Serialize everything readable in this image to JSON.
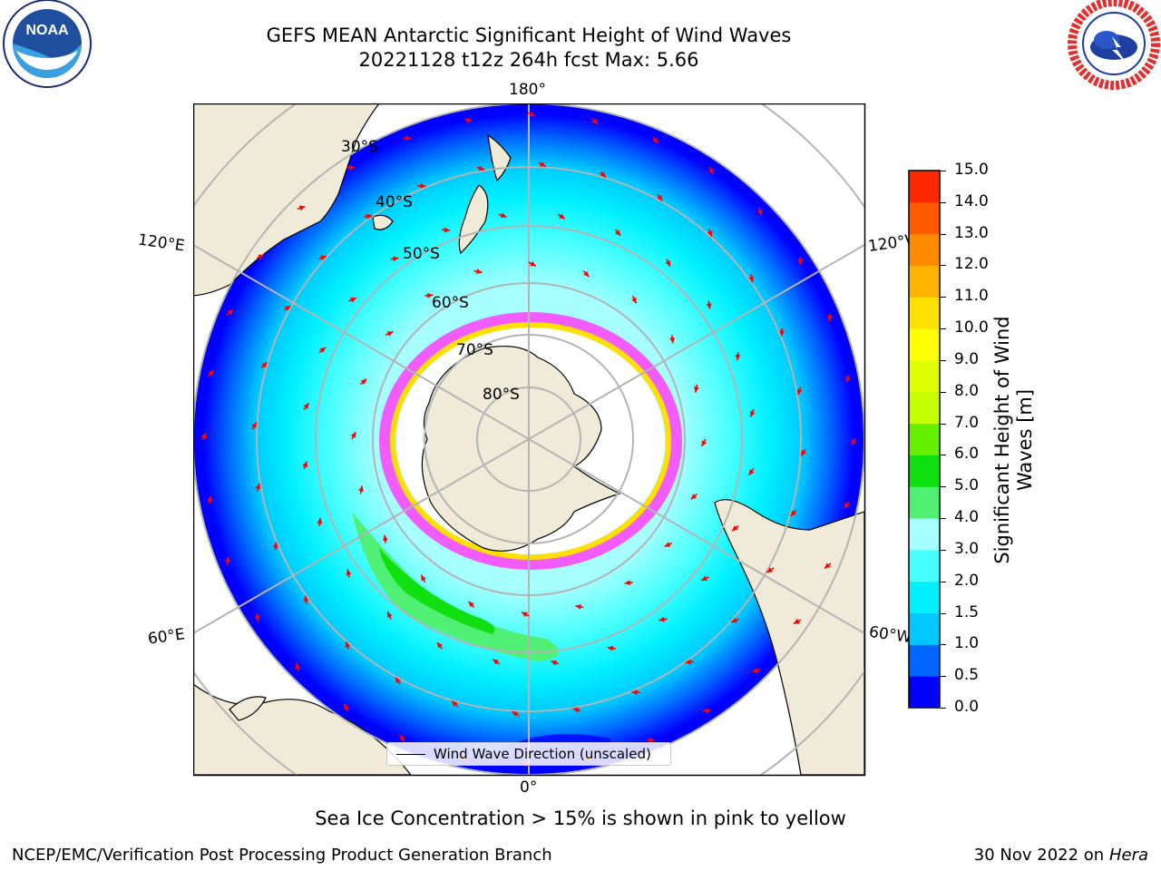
{
  "title": {
    "line1": "GEFS MEAN Antarctic Significant Height of Wind Waves",
    "line2": "20221128 t12z 264h fcst   Max: 5.66"
  },
  "map": {
    "projection": "south-polar-stereographic",
    "longitude_labels": [
      "180°",
      "120°E",
      "120°W",
      "60°E",
      "60°W",
      "0°"
    ],
    "latitude_labels": [
      "30°S",
      "40°S",
      "50°S",
      "60°S",
      "70°S",
      "80°S"
    ],
    "colors": {
      "land": "#efebd8",
      "ocean_low": "#0000ff",
      "ice": "#ffffff",
      "grid": "#b4b4b4",
      "arrow": "#ff0000"
    }
  },
  "legend": {
    "label": "Wind Wave Direction (unscaled)"
  },
  "colorbar": {
    "label_line1": "Significant Height of Wind",
    "label_line2": "Waves [m]",
    "ticks": [
      "0.0",
      "0.5",
      "1.0",
      "1.5",
      "2.0",
      "3.0",
      "4.0",
      "5.0",
      "6.0",
      "7.0",
      "8.0",
      "9.0",
      "10.0",
      "11.0",
      "12.0",
      "13.0",
      "14.0",
      "15.0"
    ],
    "colors": [
      "#0000ff",
      "#0064ff",
      "#00c8ff",
      "#00f0ff",
      "#48ffff",
      "#a8ffff",
      "#50f074",
      "#10e010",
      "#66f000",
      "#c8ff00",
      "#e0ff00",
      "#ffff00",
      "#ffe000",
      "#ffb400",
      "#ff8c00",
      "#ff5a00",
      "#ff2800",
      "#ff0000"
    ]
  },
  "subtitle": "Sea Ice Concentration > 15% is shown in pink to yellow",
  "footer": {
    "left": "NCEP/EMC/Verification Post Processing Product Generation Branch",
    "date": "30 Nov 2022 on",
    "machine": "Hera"
  },
  "logos": {
    "left": "NOAA",
    "right": "NATIONAL WEATHER SERVICE"
  }
}
